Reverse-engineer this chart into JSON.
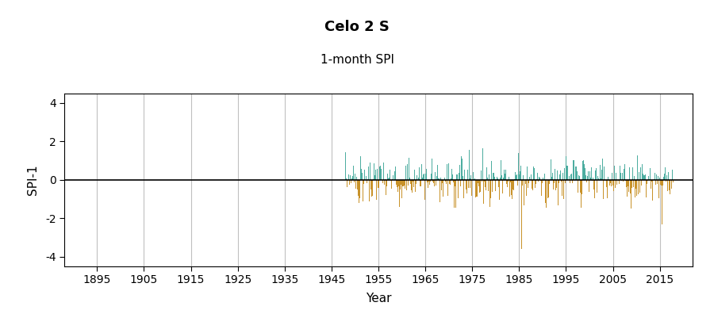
{
  "title": "Celo 2 S",
  "subtitle": "1-month SPI",
  "xlabel": "Year",
  "ylabel": "SPI-1",
  "ylim": [
    -4.5,
    4.5
  ],
  "yticks": [
    -4,
    -2,
    0,
    2,
    4
  ],
  "xlim": [
    1888,
    2022
  ],
  "xticks": [
    1895,
    1905,
    1915,
    1925,
    1935,
    1945,
    1955,
    1965,
    1975,
    1985,
    1995,
    2005,
    2015
  ],
  "data_start_year": 1948,
  "positive_color": "#4dada0",
  "negative_color": "#c8922a",
  "zero_line_color": "#000000",
  "grid_color": "#c0c0c0",
  "background_color": "#ffffff",
  "title_fontsize": 13,
  "subtitle_fontsize": 11,
  "axis_label_fontsize": 11,
  "tick_fontsize": 10
}
